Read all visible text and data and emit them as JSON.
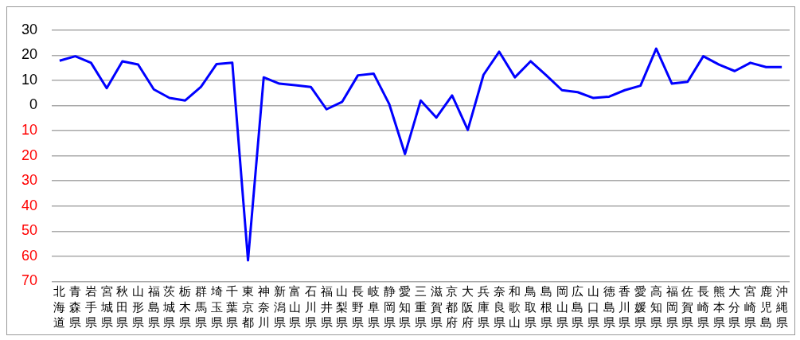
{
  "chart_data": {
    "type": "line",
    "categories": [
      "北海道",
      "青森県",
      "岩手県",
      "宮城県",
      "秋田県",
      "山形県",
      "福島県",
      "茨城県",
      "栃木県",
      "群馬県",
      "埼玉県",
      "千葉県",
      "東京都",
      "神奈川",
      "新潟県",
      "富山県",
      "石川県",
      "福井県",
      "山梨県",
      "長野県",
      "岐阜県",
      "静岡県",
      "愛知県",
      "三重県",
      "滋賀県",
      "京都府",
      "大阪府",
      "兵庫県",
      "奈良県",
      "和歌山",
      "鳥取県",
      "島根県",
      "岡山県",
      "広島県",
      "山口県",
      "徳島県",
      "香川県",
      "愛媛県",
      "高知県",
      "福岡県",
      "佐賀県",
      "長崎県",
      "熊本県",
      "大分県",
      "宮崎県",
      "鹿児島",
      "沖縄県"
    ],
    "series": [
      {
        "color": "#0000ff",
        "values": [
          17.8,
          19.6,
          17,
          6.9,
          17.6,
          16.3,
          6.4,
          3,
          2,
          7.4,
          16.5,
          17,
          -61.6,
          11.2,
          8.7,
          8.1,
          7.4,
          -1.5,
          1.5,
          12,
          12.7,
          0.5,
          -19.3,
          2,
          -4.8,
          4,
          -9.7,
          12.2,
          21.4,
          11.2,
          17.6,
          12,
          6.1,
          5.3,
          3,
          3.5,
          6.1,
          7.9,
          22.6,
          8.7,
          9.4,
          19.6,
          16.3,
          13.7,
          17,
          15.3,
          15.3
        ]
      }
    ],
    "ylim": [
      -70,
      30
    ],
    "yticks": [
      30,
      20,
      10,
      0,
      {
        "value": -10,
        "label": "10"
      },
      {
        "value": -20,
        "label": "20"
      },
      {
        "value": -30,
        "label": "30"
      },
      {
        "value": -40,
        "label": "40"
      },
      {
        "value": -50,
        "label": "50"
      },
      {
        "value": -60,
        "label": "60"
      },
      {
        "value": -70,
        "label": "70"
      }
    ],
    "grid": "y",
    "legend": false,
    "marker": "none",
    "line_style": "solid"
  }
}
